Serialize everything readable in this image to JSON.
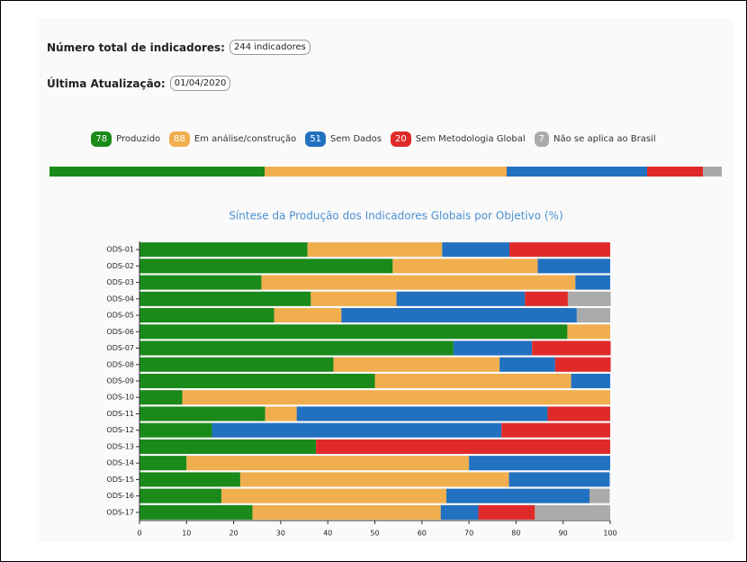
{
  "header": {
    "total_label": "Número total de indicadores:",
    "total_value": "244 indicadores",
    "update_label": "Última Atualização:",
    "update_value": "01/04/2020"
  },
  "summary": {
    "counts": [
      78,
      88,
      51,
      20,
      7
    ]
  },
  "chart_data": {
    "type": "stacked_barh",
    "title": "Síntese da Produção dos Indicadores Globais por Objetivo (%)",
    "categories": [
      "ODS-01",
      "ODS-02",
      "ODS-03",
      "ODS-04",
      "ODS-05",
      "ODS-06",
      "ODS-07",
      "ODS-08",
      "ODS-09",
      "ODS-10",
      "ODS-11",
      "ODS-12",
      "ODS-13",
      "ODS-14",
      "ODS-15",
      "ODS-16",
      "ODS-17"
    ],
    "series": [
      {
        "name": "Produzido",
        "color": "#1a8a1a",
        "values": [
          35.7,
          53.8,
          25.9,
          36.4,
          28.6,
          90.9,
          66.7,
          41.2,
          50,
          9.1,
          26.7,
          15.4,
          37.5,
          10,
          21.4,
          17.4,
          24
        ]
      },
      {
        "name": "Em análise/construção",
        "color": "#f0ae4e",
        "values": [
          28.6,
          30.8,
          66.7,
          18.2,
          14.3,
          9.1,
          0,
          35.3,
          41.7,
          90.9,
          6.7,
          0,
          0,
          60,
          57.1,
          47.8,
          40
        ]
      },
      {
        "name": "Sem Dados",
        "color": "#2270c0",
        "values": [
          14.3,
          15.4,
          7.4,
          27.3,
          50,
          0,
          16.7,
          11.8,
          8.3,
          0,
          53.3,
          61.5,
          0,
          30,
          21.4,
          30.4,
          8
        ]
      },
      {
        "name": "Sem Metodologia Global",
        "color": "#e02a2a",
        "values": [
          21.4,
          0,
          0,
          9.1,
          0,
          0,
          16.7,
          11.8,
          0,
          0,
          13.3,
          23.1,
          62.5,
          0,
          0,
          0,
          12
        ]
      },
      {
        "name": "Não se aplica ao Brasil",
        "color": "#aaaaaa",
        "values": [
          0,
          0,
          0,
          9.1,
          7.1,
          0,
          0,
          0,
          0,
          0,
          0,
          0,
          0,
          0,
          0,
          4.3,
          16
        ]
      }
    ],
    "xlim": [
      0,
      100
    ],
    "xticks": [
      0,
      10,
      20,
      30,
      40,
      50,
      60,
      70,
      80,
      90,
      100
    ]
  }
}
